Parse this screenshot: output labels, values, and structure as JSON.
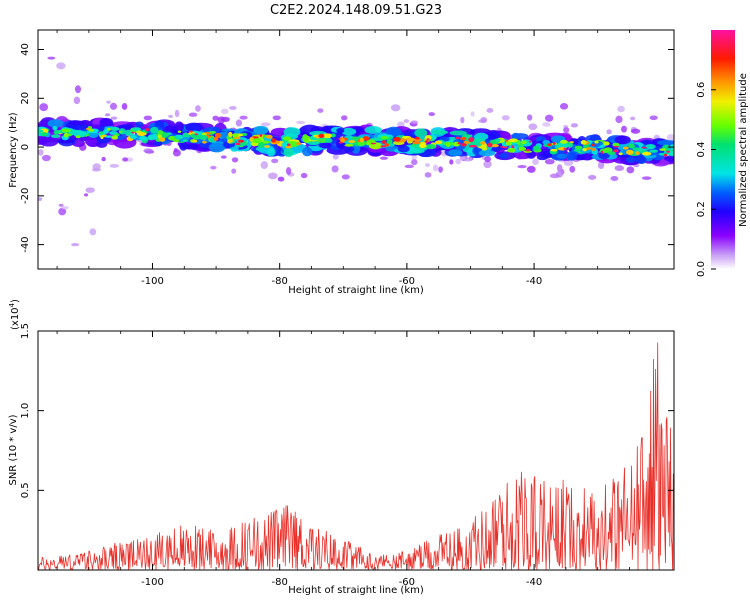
{
  "title": "C2E2.2024.148.09.51.G23",
  "colorbar": {
    "label": "Normalized spectral amplitude",
    "ticks": [
      "0.0",
      "0.2",
      "0.4",
      "0.6"
    ],
    "tick_values": [
      0.0,
      0.2,
      0.4,
      0.6
    ]
  },
  "chart_data": [
    {
      "type": "heatmap",
      "title": "",
      "xlabel": "Height of straight line (km)",
      "ylabel": "Frequency (Hz)",
      "xlim": [
        -118,
        -18
      ],
      "ylim": [
        -50,
        48
      ],
      "xticks": [
        "-100",
        "-80",
        "-60",
        "-40"
      ],
      "xtick_values": [
        -100,
        -80,
        -60,
        -40
      ],
      "yticks": [
        "-40",
        "-20",
        "0",
        "20",
        "40"
      ],
      "ytick_values": [
        -40,
        -20,
        0,
        20,
        40
      ],
      "colormap": "rainbow (white-purple-blue-cyan-green-yellow-red-magenta)",
      "zlim": [
        0,
        0.8
      ],
      "ridge": {
        "description": "dominant energy band near 0 Hz across full height range",
        "x": [
          -118,
          -110,
          -100,
          -90,
          -80,
          -70,
          -60,
          -50,
          -40,
          -30,
          -20
        ],
        "center_freq_hz": [
          6,
          6,
          5,
          4,
          2,
          3,
          2,
          2,
          0,
          0,
          -2
        ],
        "peak_amplitude": [
          0.55,
          0.5,
          0.55,
          0.6,
          0.75,
          0.65,
          0.7,
          0.8,
          0.55,
          0.6,
          0.55
        ]
      }
    },
    {
      "type": "line",
      "title": "",
      "xlabel": "Height of straight line (km)",
      "ylabel": "SNR (10 * v/v)",
      "scale_label": "(x10",
      "scale_exp": "4",
      "scale_suffix": ")",
      "xlim": [
        -118,
        -18
      ],
      "ylim": [
        0,
        1.5
      ],
      "xticks": [
        "-100",
        "-80",
        "-60",
        "-40"
      ],
      "xtick_values": [
        -100,
        -80,
        -60,
        -40
      ],
      "yticks": [
        "0.5",
        "1.0",
        "1.5"
      ],
      "ytick_values": [
        0.5,
        1.0,
        1.5
      ],
      "series": [
        {
          "color": "#e8302a",
          "envelope": {
            "x": [
              -118,
              -110,
              -105,
              -100,
              -95,
              -90,
              -85,
              -80,
              -78,
              -75,
              -70,
              -65,
              -60,
              -55,
              -50,
              -47,
              -45,
              -42,
              -40,
              -35,
              -30,
              -25,
              -22,
              -21,
              -20,
              -18
            ],
            "y": [
              0.08,
              0.12,
              0.18,
              0.22,
              0.3,
              0.25,
              0.32,
              0.4,
              0.42,
              0.3,
              0.2,
              0.1,
              0.12,
              0.22,
              0.3,
              0.45,
              0.55,
              0.65,
              0.6,
              0.58,
              0.52,
              0.68,
              1.0,
              1.5,
              1.4,
              0.8
            ]
          }
        }
      ]
    }
  ]
}
